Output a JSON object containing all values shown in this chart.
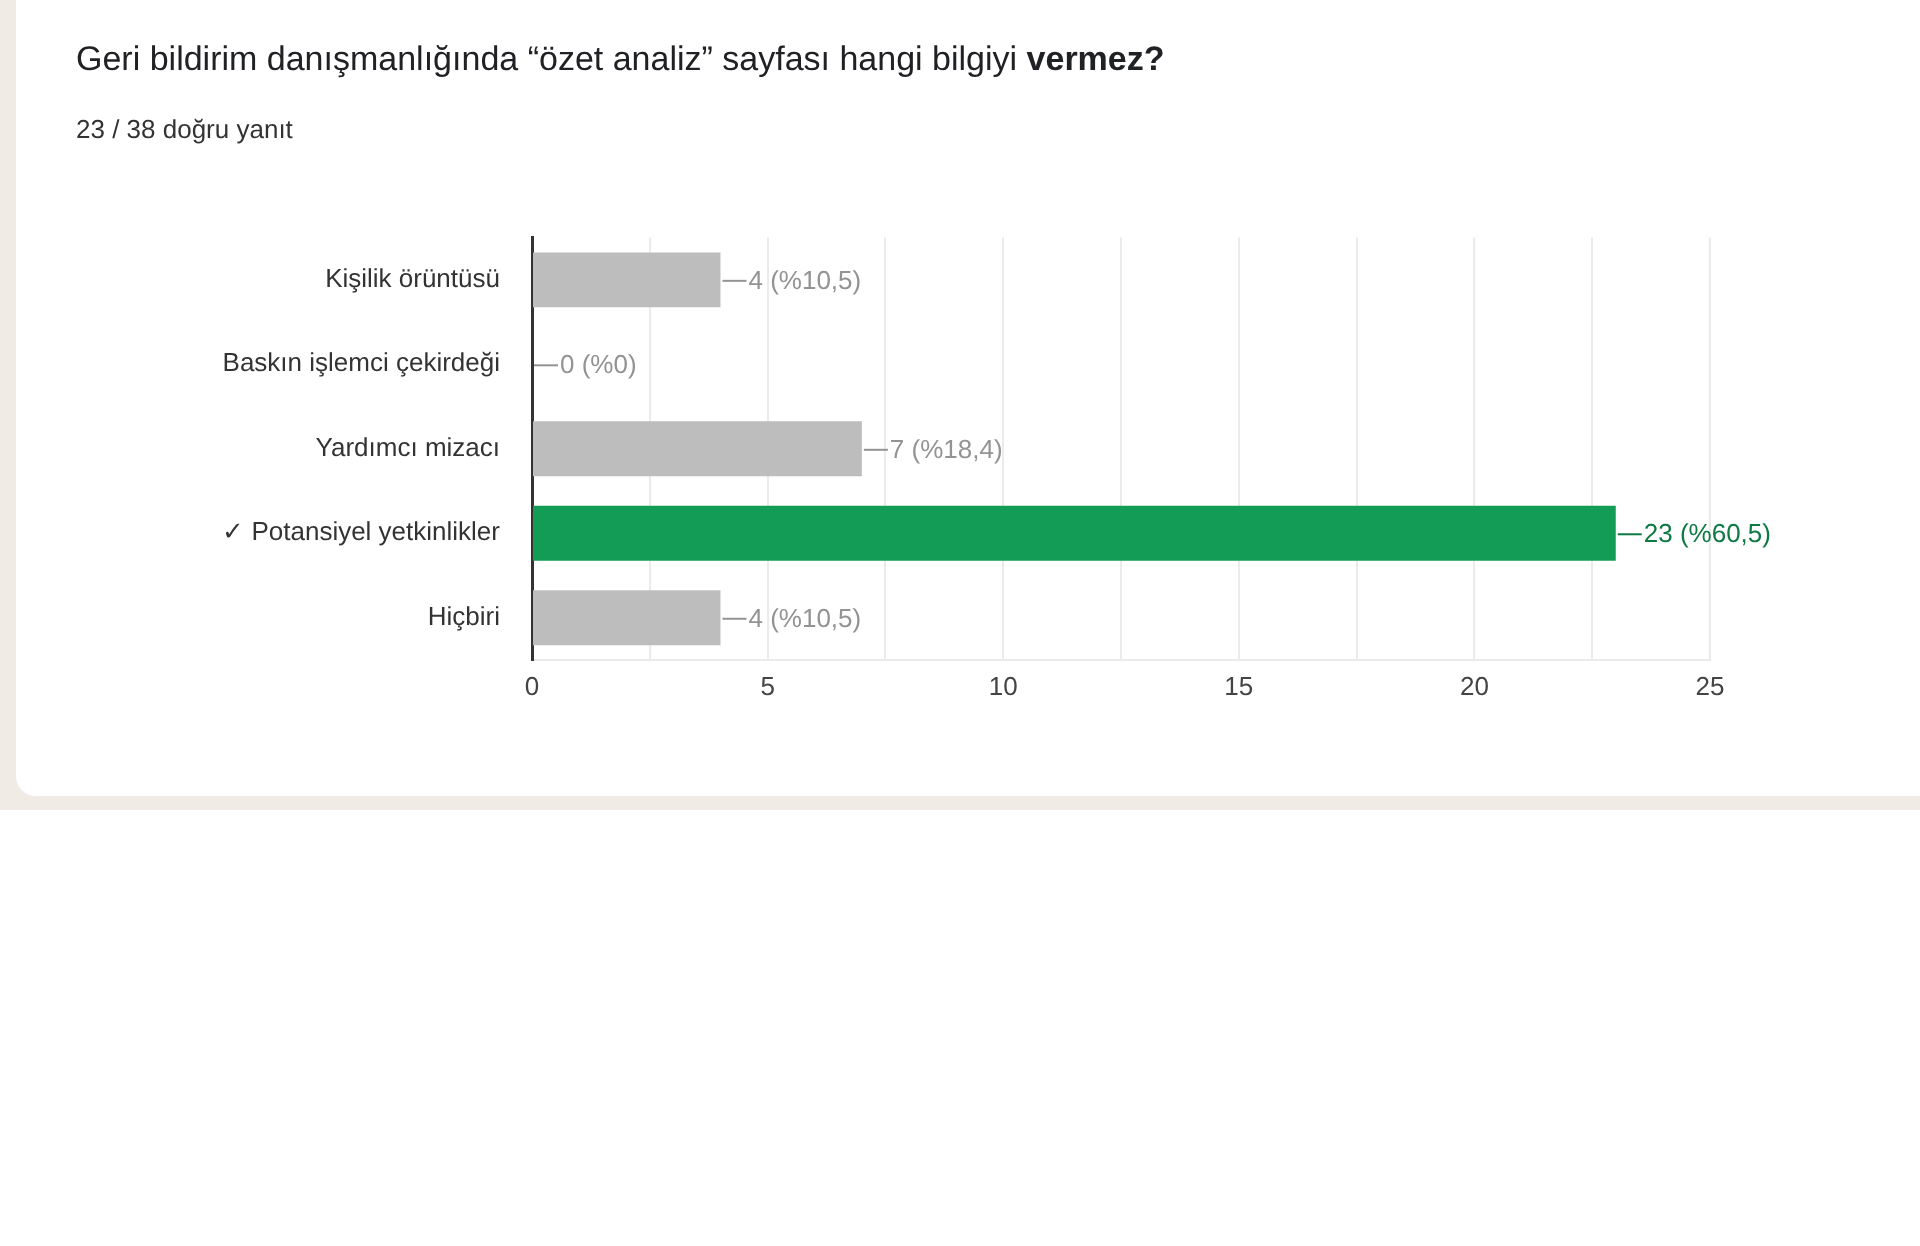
{
  "chart_data": {
    "type": "bar",
    "orientation": "horizontal",
    "title": "Geri bildirim danışmanlığında “özet analiz” sayfası hangi bilgiyi vermez?",
    "subtitle": "23 / 38 doğru yanıt",
    "categories": [
      "Kişilik örüntüsü",
      "Baskın işlemci çekirdeği",
      "Yardımcı mizacı",
      "✓ Potansiyel yetkinlikler",
      "Hiçbiri"
    ],
    "values": [
      4,
      0,
      7,
      23,
      4
    ],
    "colors": [
      "#bdbdbd",
      "#bdbdbd",
      "#bdbdbd",
      "#129c56",
      "#bdbdbd"
    ],
    "value_labels": [
      "4 (%10,5)",
      "0 (%0)",
      "7 (%18,4)",
      "23 (%60,5)",
      "4 (%10,5)"
    ],
    "xlim": [
      0,
      25
    ],
    "xticks": [
      0,
      {
        "value": 2.5,
        "label": null
      },
      5,
      {
        "value": 7.5,
        "label": null
      },
      10,
      {
        "value": 12.5,
        "label": null
      },
      15,
      {
        "value": 17.5,
        "label": null
      },
      20,
      {
        "value": 22.5,
        "label": null
      },
      25
    ],
    "grid": "x"
  }
}
